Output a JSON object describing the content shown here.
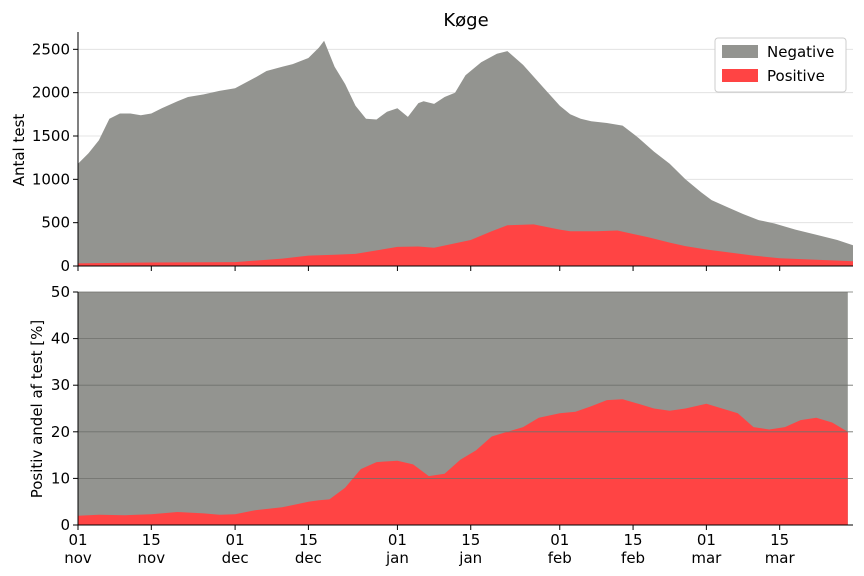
{
  "colors": {
    "negative": "#939490",
    "positive": "#ff4444",
    "axis": "#000000",
    "grid": "#dddddd"
  },
  "chart_data": [
    {
      "type": "area",
      "title": "Køge",
      "ylabel": "Antal test",
      "ylim": [
        0,
        2700
      ],
      "yticks": [
        0,
        500,
        1000,
        1500,
        2000,
        2500
      ],
      "x_range": [
        "2020-11-01",
        "2021-03-29"
      ],
      "stacked": true,
      "grid": "horizontal",
      "legend": {
        "placement": "top-right",
        "entries": [
          "Negative",
          "Positive"
        ]
      },
      "series": [
        {
          "name": "Positive",
          "x": [
            "2020-11-01",
            "2020-11-15",
            "2020-12-01",
            "2020-12-10",
            "2020-12-15",
            "2020-12-20",
            "2020-12-24",
            "2021-01-01",
            "2021-01-05",
            "2021-01-08",
            "2021-01-15",
            "2021-01-19",
            "2021-01-22",
            "2021-01-27",
            "2021-02-01",
            "2021-02-03",
            "2021-02-08",
            "2021-02-12",
            "2021-02-18",
            "2021-02-22",
            "2021-02-25",
            "2021-03-01",
            "2021-03-10",
            "2021-03-15",
            "2021-03-29"
          ],
          "values": [
            30,
            40,
            45,
            85,
            120,
            130,
            140,
            220,
            225,
            210,
            300,
            400,
            470,
            480,
            420,
            400,
            400,
            410,
            330,
            270,
            230,
            190,
            120,
            90,
            55
          ]
        },
        {
          "name": "Total",
          "x": [
            "2020-11-01",
            "2020-11-03",
            "2020-11-05",
            "2020-11-07",
            "2020-11-09",
            "2020-11-11",
            "2020-11-13",
            "2020-11-15",
            "2020-11-17",
            "2020-11-20",
            "2020-11-22",
            "2020-11-25",
            "2020-11-28",
            "2020-12-01",
            "2020-12-05",
            "2020-12-07",
            "2020-12-10",
            "2020-12-12",
            "2020-12-15",
            "2020-12-17",
            "2020-12-18",
            "2020-12-20",
            "2020-12-22",
            "2020-12-24",
            "2020-12-26",
            "2020-12-28",
            "2020-12-30",
            "2021-01-01",
            "2021-01-03",
            "2021-01-05",
            "2021-01-06",
            "2021-01-08",
            "2021-01-10",
            "2021-01-12",
            "2021-01-14",
            "2021-01-17",
            "2021-01-20",
            "2021-01-22",
            "2021-01-25",
            "2021-01-29",
            "2021-02-01",
            "2021-02-03",
            "2021-02-05",
            "2021-02-07",
            "2021-02-10",
            "2021-02-13",
            "2021-02-16",
            "2021-02-19",
            "2021-02-22",
            "2021-02-25",
            "2021-02-28",
            "2021-03-02",
            "2021-03-05",
            "2021-03-08",
            "2021-03-11",
            "2021-03-14",
            "2021-03-18",
            "2021-03-22",
            "2021-03-26",
            "2021-03-29"
          ],
          "values": [
            1180,
            1300,
            1450,
            1700,
            1760,
            1760,
            1740,
            1760,
            1820,
            1900,
            1950,
            1980,
            2020,
            2050,
            2180,
            2250,
            2300,
            2330,
            2400,
            2520,
            2600,
            2300,
            2100,
            1850,
            1700,
            1690,
            1780,
            1820,
            1720,
            1880,
            1900,
            1870,
            1950,
            2000,
            2200,
            2350,
            2450,
            2480,
            2320,
            2050,
            1850,
            1750,
            1700,
            1670,
            1650,
            1620,
            1480,
            1320,
            1180,
            1000,
            850,
            760,
            680,
            600,
            530,
            490,
            420,
            360,
            300,
            240
          ]
        }
      ]
    },
    {
      "type": "area",
      "ylabel": "Positiv andel af test [%]",
      "ylim": [
        0,
        50
      ],
      "yticks": [
        0,
        10,
        20,
        30,
        40,
        50
      ],
      "x_range": [
        "2020-11-01",
        "2021-03-29"
      ],
      "grid": "horizontal",
      "xticks": [
        {
          "date": "2020-11-01",
          "label1": "01",
          "label2": "nov"
        },
        {
          "date": "2020-11-15",
          "label1": "15",
          "label2": "nov"
        },
        {
          "date": "2020-12-01",
          "label1": "01",
          "label2": "dec"
        },
        {
          "date": "2020-12-15",
          "label1": "15",
          "label2": "dec"
        },
        {
          "date": "2021-01-01",
          "label1": "01",
          "label2": "jan"
        },
        {
          "date": "2021-01-15",
          "label1": "15",
          "label2": "jan"
        },
        {
          "date": "2021-02-01",
          "label1": "01",
          "label2": "feb"
        },
        {
          "date": "2021-02-15",
          "label1": "15",
          "label2": "feb"
        },
        {
          "date": "2021-03-01",
          "label1": "01",
          "label2": "mar"
        },
        {
          "date": "2021-03-15",
          "label1": "15",
          "label2": "mar"
        }
      ],
      "series": [
        {
          "name": "Negative",
          "x": [
            "2020-11-01",
            "2021-03-28"
          ],
          "values": [
            50,
            50
          ]
        },
        {
          "name": "Positive",
          "x": [
            "2020-11-01",
            "2020-11-05",
            "2020-11-10",
            "2020-11-15",
            "2020-11-20",
            "2020-11-25",
            "2020-11-28",
            "2020-12-01",
            "2020-12-05",
            "2020-12-10",
            "2020-12-13",
            "2020-12-15",
            "2020-12-17",
            "2020-12-19",
            "2020-12-22",
            "2020-12-25",
            "2020-12-28",
            "2021-01-01",
            "2021-01-04",
            "2021-01-07",
            "2021-01-10",
            "2021-01-13",
            "2021-01-16",
            "2021-01-19",
            "2021-01-22",
            "2021-01-25",
            "2021-01-28",
            "2021-02-01",
            "2021-02-04",
            "2021-02-07",
            "2021-02-10",
            "2021-02-13",
            "2021-02-16",
            "2021-02-19",
            "2021-02-22",
            "2021-02-25",
            "2021-03-01",
            "2021-03-04",
            "2021-03-07",
            "2021-03-10",
            "2021-03-13",
            "2021-03-16",
            "2021-03-19",
            "2021-03-22",
            "2021-03-25",
            "2021-03-28"
          ],
          "values": [
            2,
            2.2,
            2.1,
            2.3,
            2.8,
            2.5,
            2.2,
            2.3,
            3.2,
            3.8,
            4.5,
            5,
            5.3,
            5.5,
            8,
            12,
            13.5,
            13.8,
            13,
            10.5,
            11,
            14,
            16,
            19,
            20,
            21,
            23,
            24,
            24.3,
            25.5,
            26.8,
            27,
            26,
            25,
            24.5,
            25,
            26,
            25,
            24,
            21,
            20.5,
            21,
            22.5,
            23,
            22,
            20
          ]
        }
      ]
    }
  ]
}
